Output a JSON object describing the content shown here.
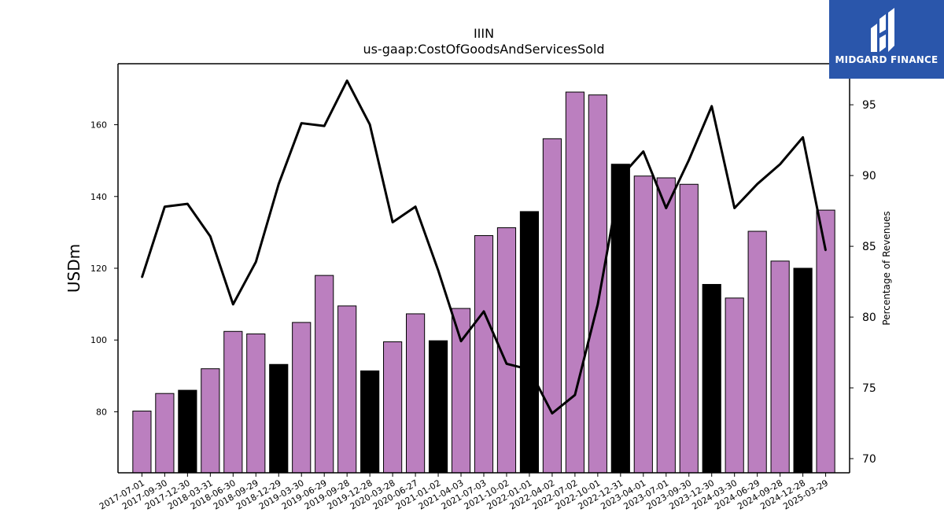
{
  "chart_data": {
    "type": "bar",
    "title": "IIIN",
    "subtitle": "us-gaap:CostOfGoodsAndServicesSold",
    "ylabel": "USDm",
    "y2label": "Percentage of Revenues",
    "ylim": [
      63,
      177
    ],
    "y2lim": [
      69,
      97.9
    ],
    "yticks": [
      80,
      100,
      120,
      140,
      160
    ],
    "y2ticks": [
      70,
      75,
      80,
      85,
      90,
      95
    ],
    "categories": [
      "2017-07-01",
      "2017-09-30",
      "2017-12-30",
      "2018-03-31",
      "2018-06-30",
      "2018-09-29",
      "2018-12-29",
      "2019-03-30",
      "2019-06-29",
      "2019-09-28",
      "2019-12-28",
      "2020-03-28",
      "2020-06-27",
      "2021-01-02",
      "2021-04-03",
      "2021-07-03",
      "2021-10-02",
      "2022-01-01",
      "2022-04-02",
      "2022-07-02",
      "2022-10-01",
      "2022-12-31",
      "2023-04-01",
      "2023-07-01",
      "2023-09-30",
      "2023-12-30",
      "2024-03-30",
      "2024-06-29",
      "2024-09-28",
      "2024-12-28",
      "2025-03-29"
    ],
    "series": [
      {
        "type": "bar",
        "axis": "left",
        "values": [
          80.2,
          85.1,
          86.0,
          92.0,
          102.4,
          101.7,
          93.2,
          104.9,
          118.0,
          109.5,
          91.4,
          99.5,
          107.3,
          99.8,
          108.8,
          129.1,
          131.3,
          135.8,
          156.1,
          169.1,
          168.3,
          149.0,
          145.7,
          145.2,
          143.4,
          115.5,
          111.7,
          130.3,
          122.0,
          120.0,
          136.2
        ],
        "highlight": [
          false,
          false,
          true,
          false,
          false,
          false,
          true,
          false,
          false,
          false,
          true,
          false,
          false,
          true,
          false,
          false,
          false,
          true,
          false,
          false,
          false,
          true,
          false,
          false,
          false,
          true,
          false,
          false,
          false,
          true,
          false
        ]
      },
      {
        "type": "line",
        "axis": "right",
        "values": [
          82.8,
          87.8,
          88.0,
          85.7,
          80.9,
          83.9,
          89.4,
          93.7,
          93.5,
          96.7,
          93.6,
          86.7,
          87.8,
          83.3,
          78.3,
          80.4,
          76.7,
          76.3,
          73.2,
          74.5,
          80.9,
          89.9,
          91.7,
          87.7,
          91.1,
          94.9,
          87.7,
          89.4,
          90.8,
          92.7,
          84.7
        ]
      }
    ],
    "colors": {
      "bar": "#bb7fbf",
      "bar_highlight": "#000000",
      "line": "#000000"
    },
    "grid": false
  },
  "logo": {
    "text": "MIDGARD FINANCE",
    "color": "#2a56ab"
  }
}
